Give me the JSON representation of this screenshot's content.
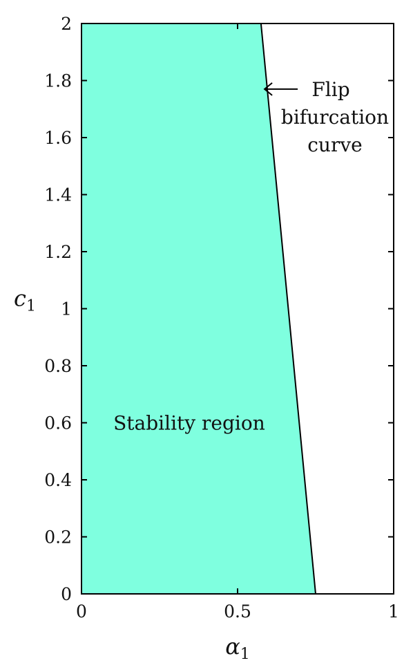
{
  "chart_data": {
    "type": "area",
    "x_var": "α",
    "x_sub": "1",
    "y_var": "c",
    "y_sub": "1",
    "xlim": [
      0,
      1
    ],
    "ylim": [
      0,
      2
    ],
    "xticks": [
      0,
      0.5,
      1
    ],
    "xtick_labels": [
      "0",
      "0.5",
      "1"
    ],
    "yticks": [
      0,
      0.2,
      0.4,
      0.6,
      0.8,
      1,
      1.2,
      1.4,
      1.6,
      1.8,
      2
    ],
    "ytick_labels": [
      "0",
      "0.2",
      "0.4",
      "0.6",
      "0.8",
      "1",
      "1.2",
      "1.4",
      "1.6",
      "1.8",
      "2"
    ],
    "grid": false,
    "fill_color": "#7fffdf",
    "line_color": "#000000",
    "bifurcation_curve": {
      "points": [
        {
          "x": 0.75,
          "y": 0
        },
        {
          "x": 0.575,
          "y": 2
        }
      ]
    },
    "region_label": {
      "text": "Stability region",
      "x": 0.345,
      "y": 0.6
    },
    "curve_annotation": {
      "lines": [
        "Flip",
        "bifurcation",
        "curve"
      ],
      "arrow_target": {
        "x": 0.582,
        "y": 1.77
      }
    }
  }
}
